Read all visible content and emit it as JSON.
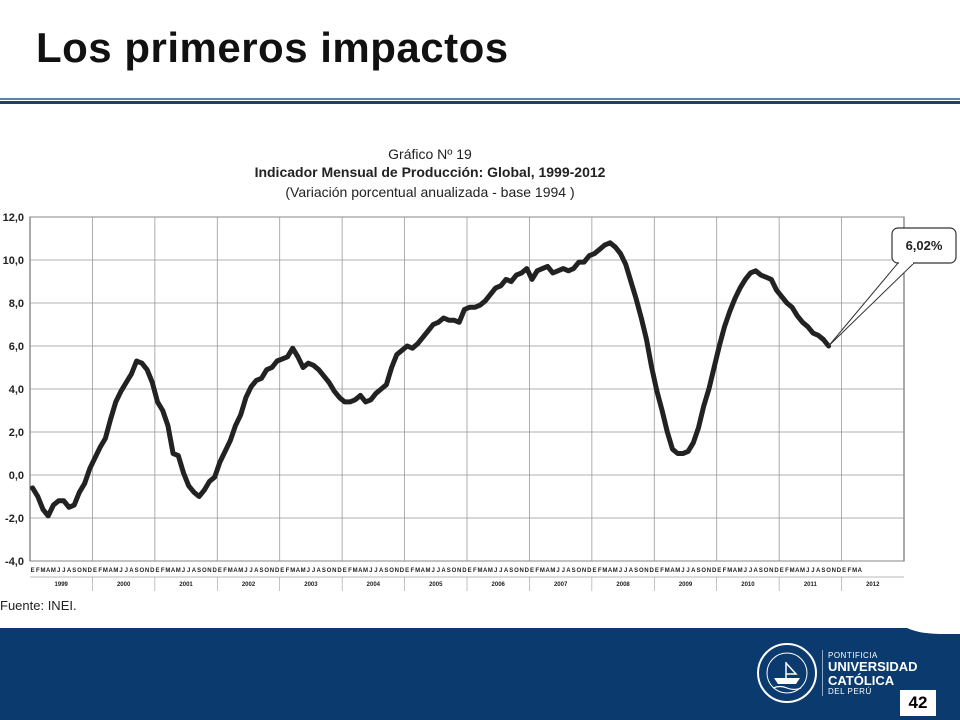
{
  "slide": {
    "title": "Los primeros impactos",
    "source": "Fuente: INEI.",
    "page_number": "42"
  },
  "university": {
    "line1": "PONTIFICIA",
    "line2": "UNIVERSIDAD",
    "line3": "CATÓLICA",
    "line4": "DEL PERÚ",
    "seal_text": "ET LUX IN TENEBRIS LUCET"
  },
  "colors": {
    "footer": "#0b3b6e",
    "line": "#222222"
  },
  "chart_data": {
    "type": "line",
    "title": "Gráfico Nº 19",
    "subtitle": "Indicador Mensual de Producción: Global, 1999-2012",
    "subtitle2": "(Variación porcentual anualizada - base 1994 )",
    "ylim": [
      -4,
      12
    ],
    "yticks": [
      "-4,0",
      "-2,0",
      "0,0",
      "2,0",
      "4,0",
      "6,0",
      "8,0",
      "10,0",
      "12,0"
    ],
    "years": [
      "1999",
      "2000",
      "2001",
      "2002",
      "2003",
      "2004",
      "2005",
      "2006",
      "2007",
      "2008",
      "2009",
      "2010",
      "2011",
      "2012"
    ],
    "months_full": "EFMAMJJASOND",
    "months_last": "EFMA",
    "annotation": "6,02%",
    "grid": true,
    "series": [
      {
        "values": [
          -0.6,
          -1.0,
          -1.6,
          -1.9,
          -1.4,
          -1.2,
          -1.2,
          -1.5,
          -1.4,
          -0.8,
          -0.4,
          0.3,
          0.8,
          1.3,
          1.7,
          2.6,
          3.4,
          3.9,
          4.3,
          4.7,
          5.3,
          5.2,
          4.9,
          4.3,
          3.4,
          3.0,
          2.3,
          1.0,
          0.9,
          0.1,
          -0.5,
          -0.8,
          -1.0,
          -0.7,
          -0.3,
          -0.1,
          0.6,
          1.1,
          1.6,
          2.3,
          2.8,
          3.6,
          4.1,
          4.4,
          4.5,
          4.9,
          5.0,
          5.3,
          5.4,
          5.5,
          5.9,
          5.5,
          5.0,
          5.2,
          5.1,
          4.9,
          4.6,
          4.3,
          3.9,
          3.6,
          3.4,
          3.4,
          3.5,
          3.7,
          3.4,
          3.5,
          3.8,
          4.0,
          4.2,
          5.0,
          5.6,
          5.8,
          6.0,
          5.9,
          6.1,
          6.4,
          6.7,
          7.0,
          7.1,
          7.3,
          7.2,
          7.2,
          7.1,
          7.7,
          7.8,
          7.8,
          7.9,
          8.1,
          8.4,
          8.7,
          8.8,
          9.1,
          9.0,
          9.3,
          9.4,
          9.6,
          9.1,
          9.5,
          9.6,
          9.7,
          9.4,
          9.5,
          9.6,
          9.5,
          9.6,
          9.9,
          9.9,
          10.2,
          10.3,
          10.5,
          10.7,
          10.8,
          10.6,
          10.3,
          9.8,
          9.0,
          8.2,
          7.3,
          6.3,
          5.0,
          3.9,
          3.0,
          2.0,
          1.2,
          1.0,
          1.0,
          1.1,
          1.5,
          2.2,
          3.2,
          4.0,
          5.0,
          6.0,
          6.9,
          7.6,
          8.2,
          8.7,
          9.1,
          9.4,
          9.5,
          9.3,
          9.2,
          9.1,
          8.6,
          8.3,
          8.0,
          7.8,
          7.4,
          7.1,
          6.9,
          6.6,
          6.5,
          6.3,
          6.0
        ]
      }
    ]
  }
}
